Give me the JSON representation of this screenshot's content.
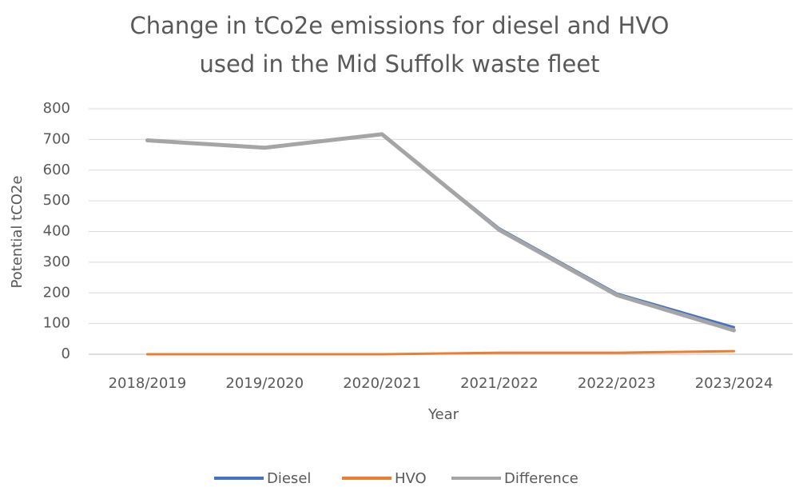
{
  "chart_data": {
    "type": "line",
    "title": "Change in tCo2e emissions for diesel and HVO used in the Mid Suffolk waste fleet",
    "x_label": "Year",
    "y_label": "Potential tCO2e",
    "categories": [
      "2018/2019",
      "2019/2020",
      "2020/2021",
      "2021/2022",
      "2022/2023",
      "2023/2024"
    ],
    "series": [
      {
        "name": "Diesel",
        "color": "#4472c4",
        "values": [
          697,
          673,
          717,
          410,
          198,
          88
        ]
      },
      {
        "name": "HVO",
        "color": "#ed7d31",
        "values": [
          0,
          0,
          0,
          5,
          5,
          10
        ]
      },
      {
        "name": "Difference",
        "color": "#a5a5a5",
        "values": [
          697,
          673,
          717,
          405,
          193,
          78
        ]
      }
    ],
    "ylim": [
      0,
      800
    ],
    "yticks": [
      0,
      100,
      200,
      300,
      400,
      500,
      600,
      700,
      800
    ],
    "grid": true,
    "legend": "bottom"
  }
}
